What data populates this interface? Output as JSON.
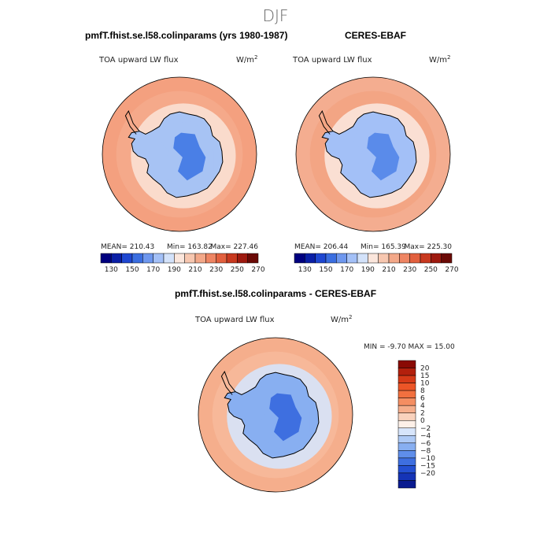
{
  "title": "DJF",
  "colors": {
    "continent_outline": "#000000",
    "coast": "#000000"
  },
  "chart_data": [
    {
      "type": "heatmap",
      "panel": "model",
      "title": "pmfT.fhist.se.l58.colinparams (yrs 1980-1987)",
      "variable": "TOA upward LW flux",
      "units": "W/m",
      "units_exp": "2",
      "stats": {
        "mean_label": "MEAN=",
        "mean": "210.43",
        "min_label": "Min=",
        "min": "163.82",
        "max_label": "Max=",
        "max": "227.46"
      },
      "colorbar": {
        "ticks": [
          "130",
          "150",
          "170",
          "190",
          "210",
          "230",
          "250",
          "270"
        ],
        "colors": [
          "#00007f",
          "#0a1fa6",
          "#1f47d1",
          "#3b6ee0",
          "#6e97ee",
          "#a3c0f7",
          "#d3e2fa",
          "#fbe6dc",
          "#f7c7b0",
          "#f3a889",
          "#ee8563",
          "#e2603e",
          "#c8391f",
          "#9e1a0f",
          "#6b0a06"
        ]
      },
      "regions": {
        "ocean": "#f5a98a",
        "outer_ring": "#f4a07f",
        "antarctic_coast": "#fbe0d3",
        "interior_mid": "#a7c3f4",
        "interior_core": "#4a7fe6"
      }
    },
    {
      "type": "heatmap",
      "panel": "obs",
      "title": "CERES-EBAF",
      "variable": "TOA upward LW flux",
      "units": "W/m",
      "units_exp": "2",
      "stats": {
        "mean_label": "MEAN=",
        "mean": "206.44",
        "min_label": "Min=",
        "min": "165.39",
        "max_label": "Max=",
        "max": "225.30"
      },
      "colorbar": {
        "ticks": [
          "130",
          "150",
          "170",
          "190",
          "210",
          "230",
          "250",
          "270"
        ],
        "colors": [
          "#00007f",
          "#0a1fa6",
          "#1f47d1",
          "#3b6ee0",
          "#6e97ee",
          "#a3c0f7",
          "#d3e2fa",
          "#fbe6dc",
          "#f7c7b0",
          "#f3a889",
          "#ee8563",
          "#e2603e",
          "#c8391f",
          "#9e1a0f",
          "#6b0a06"
        ]
      },
      "regions": {
        "ocean": "#f3a584",
        "outer_ring": "#f4ad90",
        "antarctic_coast": "#fbe6dc",
        "interior_mid": "#a3c0f7",
        "interior_core": "#5a8bea"
      }
    },
    {
      "type": "heatmap",
      "panel": "difference",
      "title": "pmfT.fhist.se.l58.colinparams - CERES-EBAF",
      "variable": "TOA upward LW flux",
      "units": "W/m",
      "units_exp": "2",
      "stats": {
        "min_label": "MIN =",
        "min": "-9.70",
        "max_label": "MAX =",
        "max": "15.00"
      },
      "colorbar": {
        "ticks": [
          "20",
          "15",
          "10",
          "8",
          "6",
          "4",
          "2",
          "0",
          "−2",
          "−4",
          "−6",
          "−8",
          "−10",
          "−15",
          "−20"
        ],
        "colors": [
          "#8a0a04",
          "#b3200d",
          "#d63a18",
          "#ec5527",
          "#f2703f",
          "#f48e62",
          "#f5ae8c",
          "#f9d2bd",
          "#fdf0e8",
          "#d7e5fb",
          "#aecaf6",
          "#88aff1",
          "#5f8eea",
          "#3e6fe0",
          "#2450d2",
          "#1534b6",
          "#0a1b90"
        ]
      },
      "regions": {
        "ocean": "#f7b899",
        "outer_ring": "#f5ae8c",
        "antarctic_coast": "#d6e4fb",
        "interior_mid": "#88aff1",
        "interior_core": "#3e6fe0"
      }
    }
  ]
}
